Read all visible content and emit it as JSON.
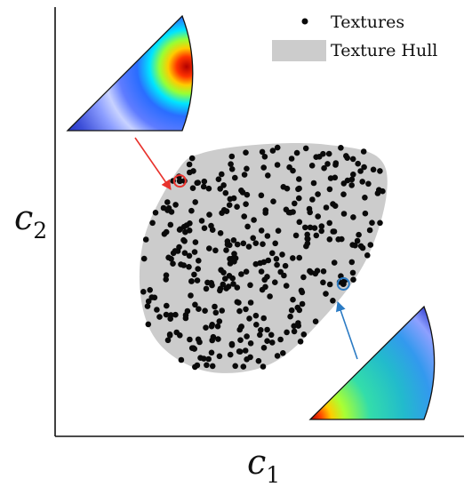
{
  "chart_data": {
    "type": "scatter",
    "title": "",
    "xlabel": {
      "base": "c",
      "sub": "1"
    },
    "ylabel": {
      "base": "c",
      "sub": "2"
    },
    "x_ticks": [],
    "y_ticks": [],
    "xlim": [
      0,
      1
    ],
    "ylim": [
      0,
      1
    ],
    "grid": false,
    "legend": {
      "placement": "top-right",
      "entries": [
        {
          "label": "Textures",
          "marker": "dot"
        },
        {
          "label": "Texture Hull",
          "marker": "patch"
        }
      ]
    },
    "colors": {
      "points": "#0a0a0a",
      "hull": "#cccccc",
      "highlight_red": "#e8322c",
      "highlight_blue": "#2b7bc4"
    },
    "hull_boundary": [
      [
        0.3,
        0.62
      ],
      [
        0.36,
        0.66
      ],
      [
        0.5,
        0.68
      ],
      [
        0.66,
        0.68
      ],
      [
        0.79,
        0.65
      ],
      [
        0.81,
        0.56
      ],
      [
        0.76,
        0.41
      ],
      [
        0.66,
        0.28
      ],
      [
        0.53,
        0.17
      ],
      [
        0.38,
        0.15
      ],
      [
        0.26,
        0.21
      ],
      [
        0.21,
        0.32
      ],
      [
        0.22,
        0.47
      ]
    ],
    "series": [
      {
        "marker": "dot",
        "count": 380
      }
    ],
    "highlighted_points": [
      {
        "color": "red",
        "x": 0.305,
        "y": 0.595,
        "inset": "top-left"
      },
      {
        "color": "blue",
        "x": 0.705,
        "y": 0.355,
        "inset": "bottom-right"
      }
    ],
    "insets": [
      {
        "position": "top-left",
        "colormap": "jet",
        "peak": "right-edge"
      },
      {
        "position": "bottom-right",
        "colormap": "jet",
        "peak": "left-corner"
      }
    ]
  }
}
